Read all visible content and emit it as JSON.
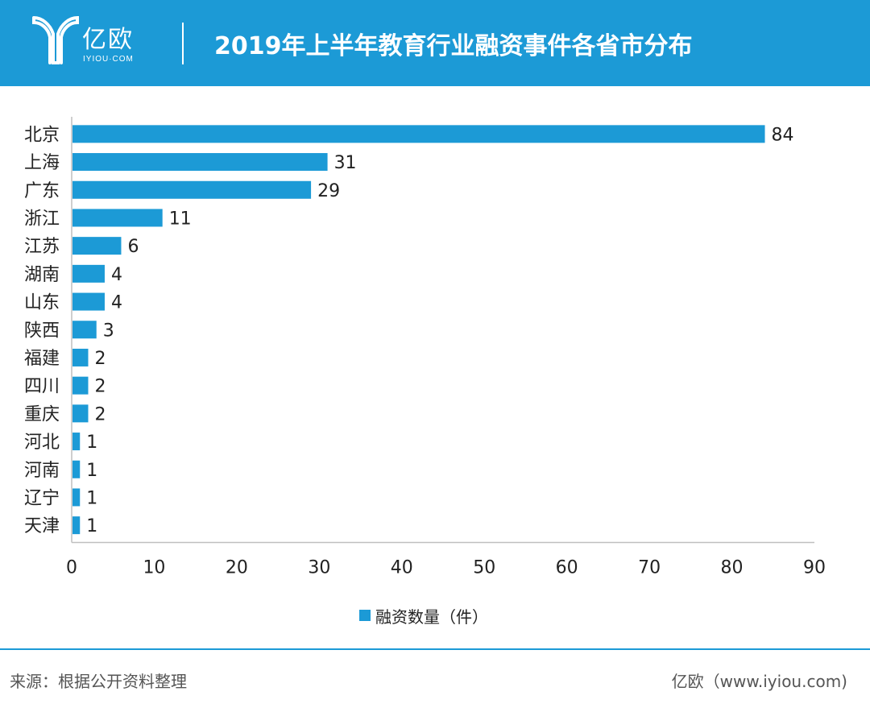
{
  "header": {
    "brand_cn": "亿欧",
    "brand_en": "IYIOU·COM",
    "title": "2019年上半年教育行业融资事件各省市分布"
  },
  "colors": {
    "header_bg": "#1c9ad6",
    "bar": "#1c9ad6"
  },
  "chart_data": {
    "type": "bar",
    "orientation": "horizontal",
    "categories": [
      "北京",
      "上海",
      "广东",
      "浙江",
      "江苏",
      "湖南",
      "山东",
      "陕西",
      "福建",
      "四川",
      "重庆",
      "河北",
      "河南",
      "辽宁",
      "天津"
    ],
    "series": [
      {
        "name": "融资数量（件）",
        "values": [
          84,
          31,
          29,
          11,
          6,
          4,
          4,
          3,
          2,
          2,
          2,
          1,
          1,
          1,
          1
        ]
      }
    ],
    "xlim": [
      0,
      90
    ],
    "xticks": [
      0,
      10,
      20,
      30,
      40,
      50,
      60,
      70,
      80,
      90
    ],
    "data_labels": true,
    "legend_position": "bottom-center",
    "grid": false
  },
  "footer": {
    "source": "来源：根据公开资料整理",
    "brand": "亿欧（www.iyiou.com)"
  }
}
